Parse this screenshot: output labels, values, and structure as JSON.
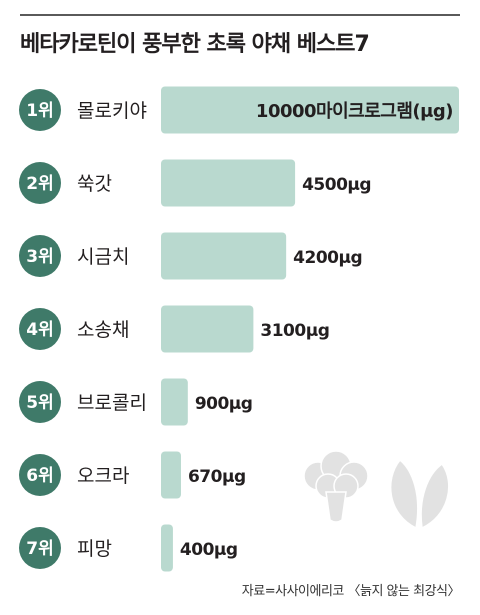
{
  "title": "베타카로틴이 풍부한 초록 야채 베스트7",
  "source": "자료=사사이에리코 〈늙지 않는 최강식〉",
  "colors": {
    "badge": "#3f7a69",
    "bar": "#b9d9cf",
    "text": "#231f20",
    "illustration": "#e2e2e2"
  },
  "chart_data": {
    "type": "bar",
    "orientation": "horizontal",
    "title": "베타카로틴이 풍부한 초록 야채 베스트7",
    "ranks": [
      "1위",
      "2위",
      "3위",
      "4위",
      "5위",
      "6위",
      "7위"
    ],
    "categories": [
      "몰로키야",
      "쑥갓",
      "시금치",
      "소송채",
      "브로콜리",
      "오크라",
      "피망"
    ],
    "values": [
      10000,
      4500,
      4200,
      3100,
      900,
      670,
      400
    ],
    "value_labels": [
      "10000마이크로그램(μg)",
      "4500μg",
      "4200μg",
      "3100μg",
      "900μg",
      "670μg",
      "400μg"
    ],
    "unit": "μg",
    "xlim": [
      0,
      10000
    ],
    "grid": false,
    "legend": "none"
  },
  "decorations": [
    "broccoli-icon",
    "spinach-icon"
  ]
}
